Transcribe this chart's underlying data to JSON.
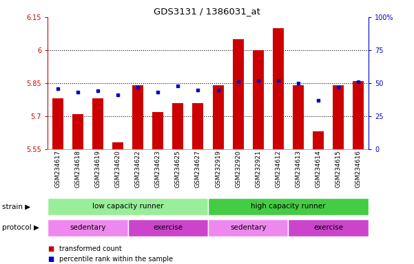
{
  "title": "GDS3131 / 1386031_at",
  "samples": [
    "GSM234617",
    "GSM234618",
    "GSM234619",
    "GSM234620",
    "GSM234622",
    "GSM234623",
    "GSM234625",
    "GSM234627",
    "GSM232919",
    "GSM232920",
    "GSM232921",
    "GSM234612",
    "GSM234613",
    "GSM234614",
    "GSM234615",
    "GSM234616"
  ],
  "bar_values": [
    5.78,
    5.71,
    5.78,
    5.58,
    5.84,
    5.72,
    5.76,
    5.76,
    5.84,
    6.05,
    6.0,
    6.1,
    5.84,
    5.63,
    5.84,
    5.86
  ],
  "dot_values": [
    46,
    43,
    44,
    41,
    47,
    43,
    48,
    45,
    45,
    51,
    52,
    52,
    50,
    37,
    47,
    51
  ],
  "ylim_left": [
    5.55,
    6.15
  ],
  "ylim_right": [
    0,
    100
  ],
  "yticks_left": [
    5.55,
    5.7,
    5.85,
    6.0,
    6.15
  ],
  "yticks_left_labels": [
    "5.55",
    "5.7",
    "5.85",
    "6",
    "6.15"
  ],
  "yticks_right": [
    0,
    25,
    50,
    75,
    100
  ],
  "yticks_right_labels": [
    "0",
    "25",
    "50",
    "75",
    "100%"
  ],
  "bar_color": "#cc0000",
  "dot_color": "#0000cc",
  "bar_bottom": 5.55,
  "strain_groups": [
    {
      "label": "low capacity runner",
      "start": 0,
      "end": 8,
      "color": "#99ee99"
    },
    {
      "label": "high capacity runner",
      "start": 8,
      "end": 16,
      "color": "#44cc44"
    }
  ],
  "protocol_groups": [
    {
      "label": "sedentary",
      "start": 0,
      "end": 4,
      "color": "#ee88ee"
    },
    {
      "label": "exercise",
      "start": 4,
      "end": 8,
      "color": "#cc44cc"
    },
    {
      "label": "sedentary",
      "start": 8,
      "end": 12,
      "color": "#ee88ee"
    },
    {
      "label": "exercise",
      "start": 12,
      "end": 16,
      "color": "#cc44cc"
    }
  ],
  "strain_label": "strain",
  "protocol_label": "protocol",
  "legend_bar_label": "transformed count",
  "legend_dot_label": "percentile rank within the sample",
  "axis_color_left": "#cc0000",
  "axis_color_right": "#0000cc",
  "bg_color": "#ffffff"
}
